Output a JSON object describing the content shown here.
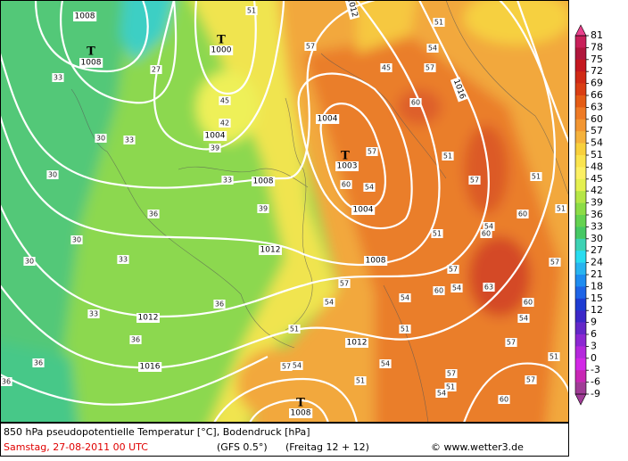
{
  "map": {
    "pressure_labels": [
      "1008",
      "1008",
      "1000",
      "1004",
      "1004",
      "1003",
      "1004",
      "1008",
      "1012",
      "1012",
      "1016",
      "1008",
      "1012",
      "1008",
      "1016",
      "1012"
    ],
    "low_markers": [
      "T",
      "T",
      "T",
      "T"
    ],
    "contour_labels": [
      "51",
      "57",
      "45",
      "42",
      "39",
      "33",
      "39",
      "33",
      "30",
      "30",
      "36",
      "30",
      "33",
      "30",
      "33",
      "27",
      "36",
      "33",
      "36",
      "36",
      "36",
      "51",
      "45",
      "57",
      "54",
      "60",
      "57",
      "54",
      "60",
      "51",
      "57",
      "51",
      "54",
      "60",
      "57",
      "51",
      "60",
      "54",
      "63",
      "57",
      "60",
      "54",
      "57",
      "54",
      "51",
      "57",
      "54",
      "51",
      "51",
      "54",
      "57",
      "51",
      "60",
      "51",
      "57",
      "54",
      "60",
      "57",
      "54",
      "51"
    ]
  },
  "legend": {
    "values": [
      81,
      78,
      75,
      72,
      69,
      66,
      63,
      60,
      57,
      54,
      51,
      48,
      45,
      42,
      39,
      36,
      33,
      30,
      27,
      24,
      21,
      18,
      15,
      12,
      9,
      6,
      3,
      0,
      -3,
      -6,
      -9
    ],
    "colors": [
      "#e8408c",
      "#c8205a",
      "#b0163c",
      "#c41820",
      "#d02a16",
      "#da3e14",
      "#e45c16",
      "#ee7a26",
      "#f29632",
      "#f5b23c",
      "#f8d03c",
      "#fae44e",
      "#fcf064",
      "#e4f050",
      "#b6e646",
      "#8cdc46",
      "#64d250",
      "#46c864",
      "#3cd2b4",
      "#28dcf0",
      "#28b4f0",
      "#1e8cf0",
      "#1e64e6",
      "#1e3cd2",
      "#3c28c8",
      "#6428c8",
      "#8c28d2",
      "#b428dc",
      "#d228e6",
      "#c828b4",
      "#a03c96"
    ]
  },
  "footer": {
    "description": "850 hPa pseudopotentielle Temperatur [°C], Bodendruck [hPa]",
    "date": "Samstag, 27-08-2011  00 UTC",
    "model": "(GFS 0.5°)",
    "run": "(Freitag 12 + 12)",
    "credit": "© www.wetter3.de"
  }
}
